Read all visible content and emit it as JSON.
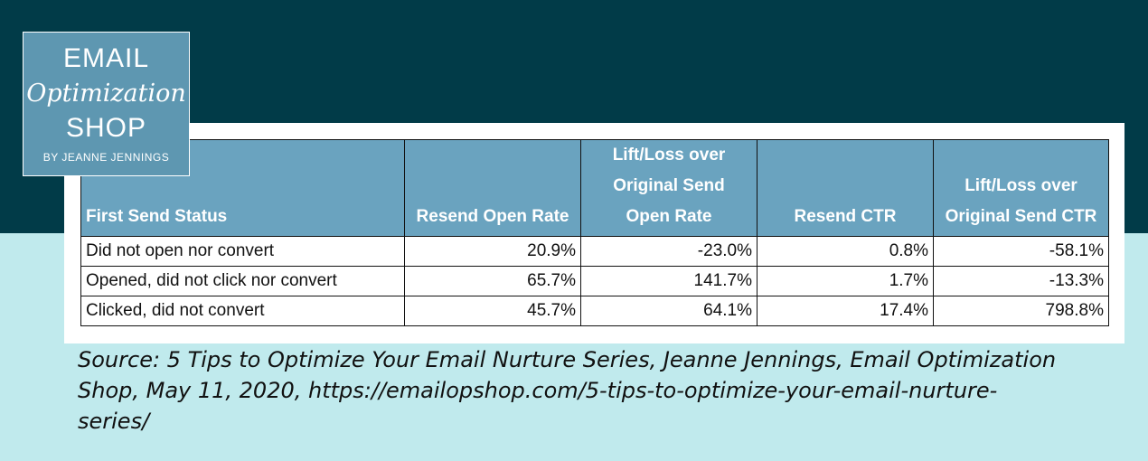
{
  "logo": {
    "line1": "EMAIL",
    "line2": "Optimization",
    "line3": "SHOP",
    "line4": "BY JEANNE JENNINGS"
  },
  "table": {
    "headers": [
      [
        "First Send Status"
      ],
      [
        "Resend Open Rate"
      ],
      [
        "Lift/Loss over",
        "Original Send",
        "Open Rate"
      ],
      [
        "Resend CTR"
      ],
      [
        "Lift/Loss over",
        "Original Send CTR"
      ]
    ],
    "rows": [
      [
        "Did not open nor convert",
        "20.9%",
        "-23.0%",
        "0.8%",
        "-58.1%"
      ],
      [
        "Opened, did not click nor convert",
        "65.7%",
        "141.7%",
        "1.7%",
        "-13.3%"
      ],
      [
        "Clicked, did not convert",
        "45.7%",
        "64.1%",
        "17.4%",
        "798.8%"
      ]
    ]
  },
  "source": {
    "line1": "Source: 5 Tips to Optimize Your Email Nurture Series, Jeanne Jennings, Email Optimization",
    "line2": "Shop, May 11, 2020, https://emailopshop.com/5-tips-to-optimize-your-email-nurture-",
    "line3": "series/"
  },
  "colors": {
    "top_band": "#013b48",
    "bottom_band": "#c0eaed",
    "header_fill": "#6aa3bf",
    "logo_fill": "#5e97b1"
  }
}
